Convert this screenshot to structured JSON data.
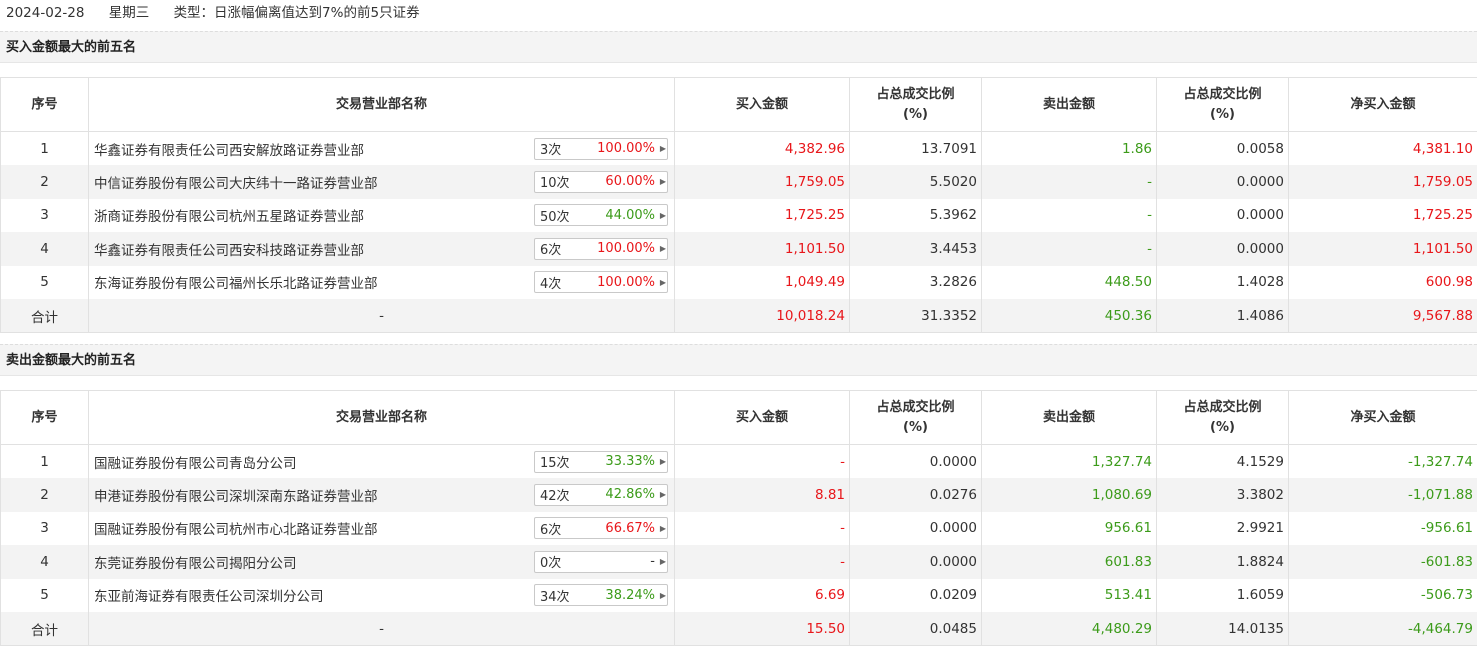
{
  "header": {
    "date": "2024-02-28",
    "weekday": "星期三",
    "type_text": "类型：日涨幅偏离值达到7%的前5只证券"
  },
  "columns": {
    "index": "序号",
    "dept": "交易营业部名称",
    "buy": "买入金额",
    "buy_ratio_l1": "占总成交比例",
    "buy_ratio_l2": "(%)",
    "sell": "卖出金额",
    "sell_ratio_l1": "占总成交比例",
    "sell_ratio_l2": "(%)",
    "net": "净买入金额"
  },
  "buy_section": {
    "title": "买入金额最大的前五名",
    "rows": [
      {
        "idx": "1",
        "name": "华鑫证券有限责任公司西安解放路证券营业部",
        "times": "3次",
        "rate": "100.00%",
        "rate_color": "red",
        "buy": "4,382.96",
        "buy_ratio": "13.7091",
        "sell": "1.86",
        "sell_ratio": "0.0058",
        "net": "4,381.10",
        "net_color": "red"
      },
      {
        "idx": "2",
        "name": "中信证券股份有限公司大庆纬十一路证券营业部",
        "times": "10次",
        "rate": "60.00%",
        "rate_color": "red",
        "buy": "1,759.05",
        "buy_ratio": "5.5020",
        "sell": "-",
        "sell_ratio": "0.0000",
        "net": "1,759.05",
        "net_color": "red"
      },
      {
        "idx": "3",
        "name": "浙商证券股份有限公司杭州五星路证券营业部",
        "times": "50次",
        "rate": "44.00%",
        "rate_color": "green",
        "buy": "1,725.25",
        "buy_ratio": "5.3962",
        "sell": "-",
        "sell_ratio": "0.0000",
        "net": "1,725.25",
        "net_color": "red"
      },
      {
        "idx": "4",
        "name": "华鑫证券有限责任公司西安科技路证券营业部",
        "times": "6次",
        "rate": "100.00%",
        "rate_color": "red",
        "buy": "1,101.50",
        "buy_ratio": "3.4453",
        "sell": "-",
        "sell_ratio": "0.0000",
        "net": "1,101.50",
        "net_color": "red"
      },
      {
        "idx": "5",
        "name": "东海证券股份有限公司福州长乐北路证券营业部",
        "times": "4次",
        "rate": "100.00%",
        "rate_color": "red",
        "buy": "1,049.49",
        "buy_ratio": "3.2826",
        "sell": "448.50",
        "sell_ratio": "1.4028",
        "net": "600.98",
        "net_color": "red"
      }
    ],
    "total": {
      "label": "合计",
      "name": "-",
      "buy": "10,018.24",
      "buy_ratio": "31.3352",
      "sell": "450.36",
      "sell_ratio": "1.4086",
      "net": "9,567.88",
      "net_color": "red"
    }
  },
  "sell_section": {
    "title": "卖出金额最大的前五名",
    "rows": [
      {
        "idx": "1",
        "name": "国融证券股份有限公司青岛分公司",
        "times": "15次",
        "rate": "33.33%",
        "rate_color": "green",
        "buy": "-",
        "buy_ratio": "0.0000",
        "sell": "1,327.74",
        "sell_ratio": "4.1529",
        "net": "-1,327.74",
        "net_color": "green"
      },
      {
        "idx": "2",
        "name": "申港证券股份有限公司深圳深南东路证券营业部",
        "times": "42次",
        "rate": "42.86%",
        "rate_color": "green",
        "buy": "8.81",
        "buy_ratio": "0.0276",
        "sell": "1,080.69",
        "sell_ratio": "3.3802",
        "net": "-1,071.88",
        "net_color": "green"
      },
      {
        "idx": "3",
        "name": "国融证券股份有限公司杭州市心北路证券营业部",
        "times": "6次",
        "rate": "66.67%",
        "rate_color": "red",
        "buy": "-",
        "buy_ratio": "0.0000",
        "sell": "956.61",
        "sell_ratio": "2.9921",
        "net": "-956.61",
        "net_color": "green"
      },
      {
        "idx": "4",
        "name": "东莞证券股份有限公司揭阳分公司",
        "times": "0次",
        "rate": "-",
        "rate_color": "gray",
        "buy": "-",
        "buy_ratio": "0.0000",
        "sell": "601.83",
        "sell_ratio": "1.8824",
        "net": "-601.83",
        "net_color": "green"
      },
      {
        "idx": "5",
        "name": "东亚前海证券有限责任公司深圳分公司",
        "times": "34次",
        "rate": "38.24%",
        "rate_color": "green",
        "buy": "6.69",
        "buy_ratio": "0.0209",
        "sell": "513.41",
        "sell_ratio": "1.6059",
        "net": "-506.73",
        "net_color": "green"
      }
    ],
    "total": {
      "label": "合计",
      "name": "-",
      "buy": "15.50",
      "buy_ratio": "0.0485",
      "sell": "4,480.29",
      "sell_ratio": "14.0135",
      "net": "-4,464.79",
      "net_color": "green"
    }
  },
  "colors": {
    "up": "#e8161a",
    "down": "#3c9b1a",
    "row_alt": "#f3f3f3",
    "section_bg": "#f4f4f4"
  },
  "icons": {
    "expand": "chevron-right-icon"
  }
}
